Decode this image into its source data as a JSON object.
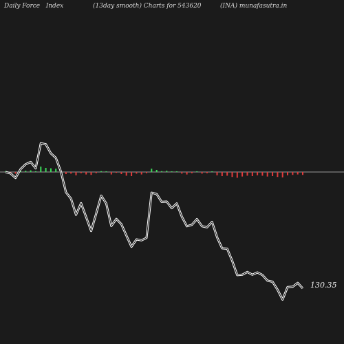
{
  "header": {
    "left": "Daily Force   Index",
    "center": "(13day smooth) Charts for 543620",
    "right": "(INA) munafasutra.in"
  },
  "chart_data": {
    "type": "line",
    "title": "Daily Force Index (13day smooth) Charts for 543620 (INA)",
    "last_value_label": "130.35",
    "baseline": 0,
    "grid": false,
    "colors": {
      "line": "#ffffff",
      "positive_bar": "#3ddc5a",
      "negative_bar": "#e23b3b",
      "zero_line": "#9a9a9a"
    },
    "series": [
      {
        "values": [
          0,
          -0.6,
          -2.6,
          1.3,
          3.4,
          4.4,
          1.6,
          12.6,
          12.2,
          8.2,
          6.2,
          0.2,
          -8.9,
          -11.7,
          -18.8,
          -13.7,
          -19.8,
          -25.9,
          -18.3,
          -10.4,
          -13.8,
          -23.7,
          -20.6,
          -22.9,
          -27.9,
          -32.8,
          -29.6,
          -30.0,
          -28.9,
          -9.1,
          -9.7,
          -13.1,
          -13.0,
          -15.9,
          -13.8,
          -19.6,
          -23.8,
          -23.2,
          -20.7,
          -23.8,
          -24.3,
          -21.9,
          -28.6,
          -33.5,
          -33.7,
          -39.0,
          -45.3,
          -45.1,
          -43.9,
          -45.1,
          -44.1,
          -45.2,
          -47.7,
          -48.2,
          -51.7,
          -56.0,
          -50.5,
          -50.4,
          -48.7,
          -51.1
        ]
      },
      {
        "values": [
          0.2,
          -0.3,
          -0.4,
          0.2,
          0.3,
          0.4,
          0.2,
          1.3,
          1.0,
          0.9,
          0.8,
          0.1,
          -0.5,
          -0.4,
          -0.8,
          -0.3,
          -0.6,
          -0.7,
          -0.3,
          0.2,
          0.1,
          -0.6,
          -0.2,
          -0.5,
          -0.9,
          -1.0,
          -0.4,
          -0.6,
          -0.3,
          0.8,
          0.5,
          0.2,
          0.3,
          0.1,
          0.1,
          -0.4,
          -0.6,
          -0.3,
          0.1,
          -0.4,
          -0.3,
          0.1,
          -0.8,
          -1.0,
          -0.9,
          -1.2,
          -1.4,
          -1.1,
          -0.9,
          -1.0,
          -0.8,
          -0.9,
          -1.1,
          -1.0,
          -1.2,
          -1.3,
          -0.8,
          -0.7,
          -0.6,
          -0.7
        ]
      }
    ]
  }
}
